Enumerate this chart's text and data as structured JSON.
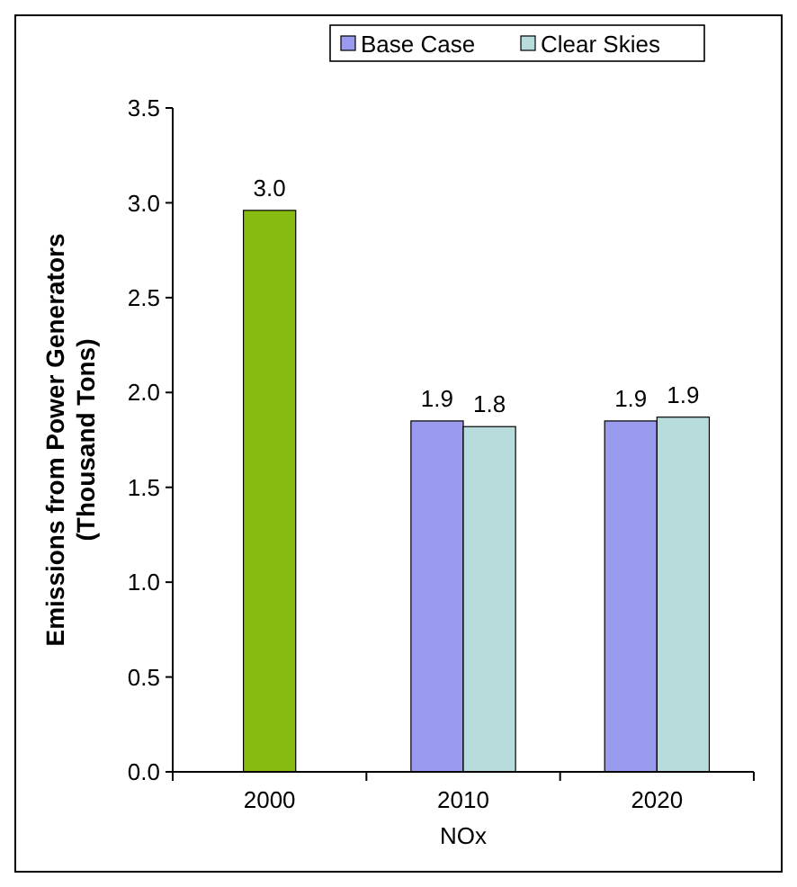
{
  "chart_data": {
    "type": "bar",
    "xlabel": "NOx",
    "ylabel": "Emissions from Power Generators\n(Thousand Tons)",
    "categories": [
      "2000",
      "2010",
      "2020"
    ],
    "series": [
      {
        "color": "#88bb11",
        "values": [
          2.96,
          null,
          null
        ],
        "value_labels": [
          "3.0",
          null,
          null
        ]
      },
      {
        "name": "Base Case",
        "color": "#9a9aee",
        "values": [
          null,
          1.85,
          1.85
        ],
        "value_labels": [
          null,
          "1.9",
          "1.9"
        ]
      },
      {
        "name": "Clear Skies",
        "color": "#b8dcdc",
        "values": [
          null,
          1.82,
          1.87
        ],
        "value_labels": [
          null,
          "1.8",
          "1.9"
        ]
      }
    ],
    "ylim": [
      0,
      3.5
    ],
    "yticks": [
      {
        "value": 0,
        "label": "0.0"
      },
      {
        "value": 0.5,
        "label": "0.5"
      },
      {
        "value": 1,
        "label": "1.0"
      },
      {
        "value": 1.5,
        "label": "1.5"
      },
      {
        "value": 2,
        "label": "2.0"
      },
      {
        "value": 2.5,
        "label": "2.5"
      },
      {
        "value": 3,
        "label": "3.0"
      },
      {
        "value": 3.5,
        "label": "3.5"
      }
    ],
    "legend": "top",
    "grid": false
  }
}
